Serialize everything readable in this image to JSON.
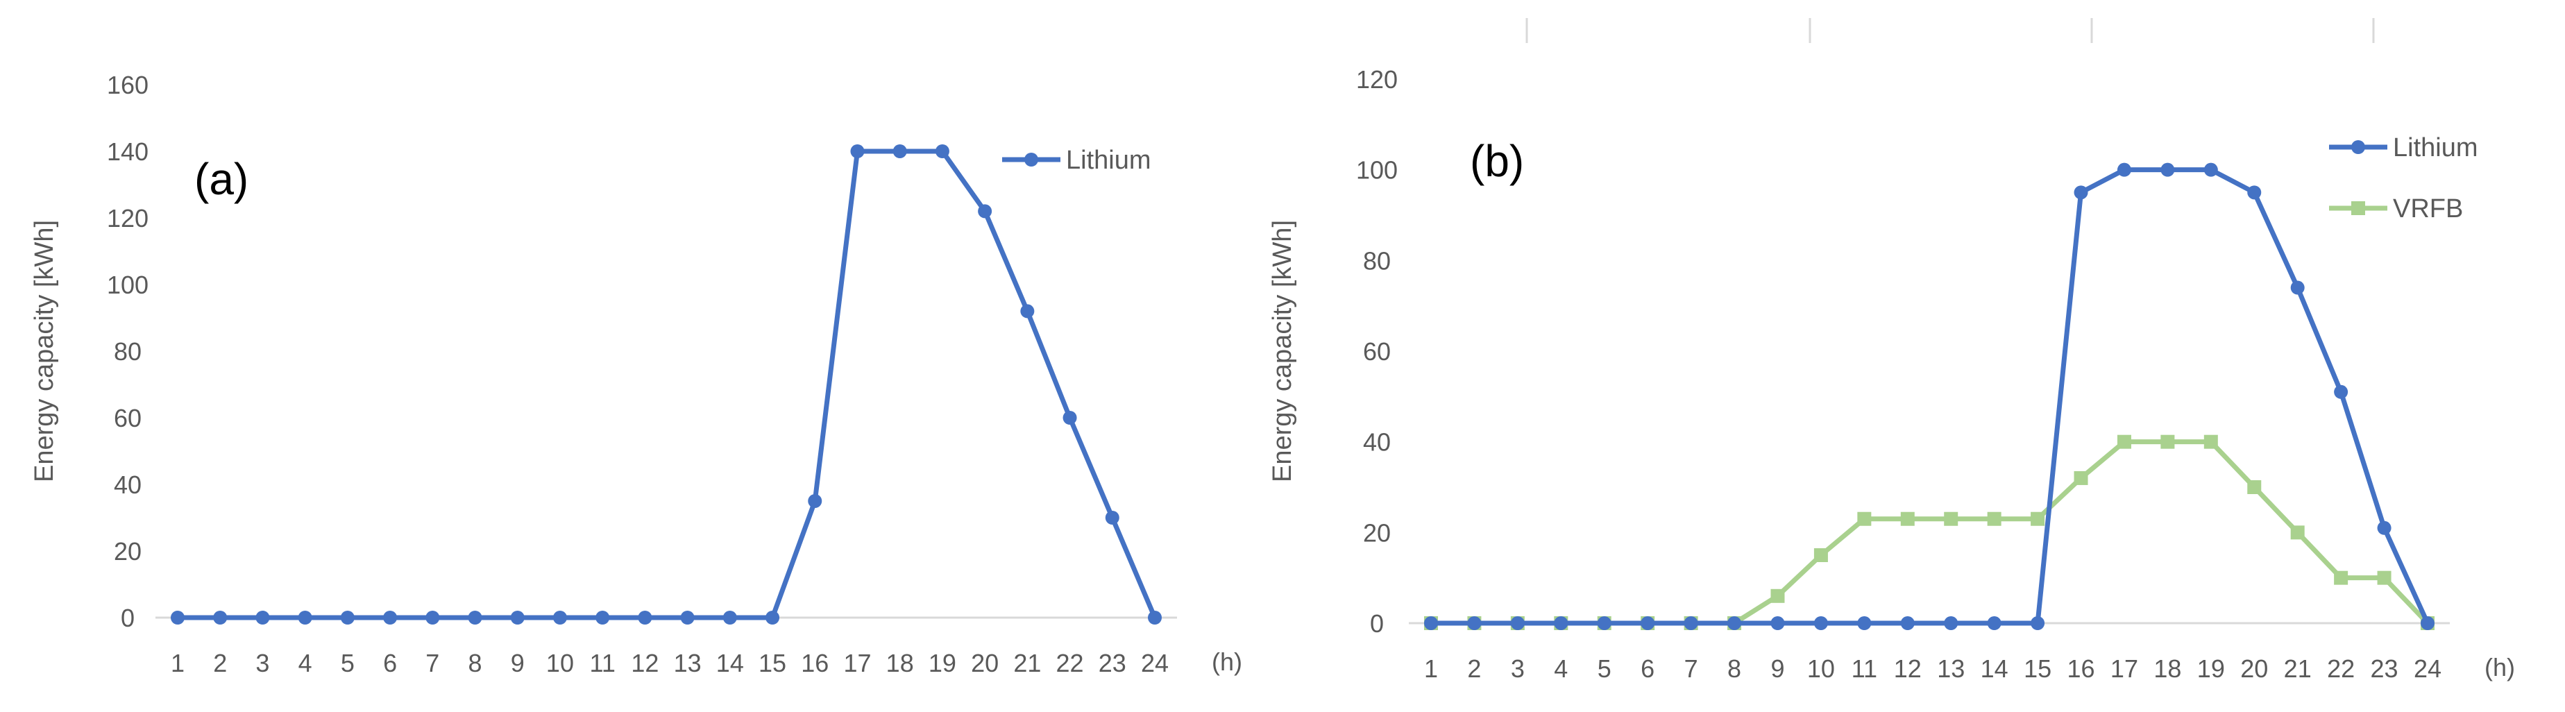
{
  "chart_data": [
    {
      "type": "line",
      "panel_label": "(a)",
      "x": [
        1,
        2,
        3,
        4,
        5,
        6,
        7,
        8,
        9,
        10,
        11,
        12,
        13,
        14,
        15,
        16,
        17,
        18,
        19,
        20,
        21,
        22,
        23,
        24
      ],
      "x_unit": "(h)",
      "ylabel": "Energy capacity [kWh]",
      "ylim": [
        0,
        160
      ],
      "yticks": [
        0,
        20,
        40,
        60,
        80,
        100,
        120,
        140,
        160
      ],
      "legend_position": "top-right",
      "series": [
        {
          "name": "Lithium",
          "color": "#4472C4",
          "marker": "circle",
          "values": [
            0,
            0,
            0,
            0,
            0,
            0,
            0,
            0,
            0,
            0,
            0,
            0,
            0,
            0,
            0,
            35,
            140,
            140,
            140,
            122,
            92,
            60,
            30,
            0
          ]
        }
      ]
    },
    {
      "type": "line",
      "panel_label": "(b)",
      "x": [
        1,
        2,
        3,
        4,
        5,
        6,
        7,
        8,
        9,
        10,
        11,
        12,
        13,
        14,
        15,
        16,
        17,
        18,
        19,
        20,
        21,
        22,
        23,
        24
      ],
      "x_unit": "(h)",
      "ylabel": "Energy capacity [kWh]",
      "ylim": [
        0,
        120
      ],
      "yticks": [
        0,
        20,
        40,
        60,
        80,
        100,
        120
      ],
      "legend_position": "top-right",
      "series": [
        {
          "name": "Lithium",
          "color": "#4472C4",
          "marker": "circle",
          "values": [
            0,
            0,
            0,
            0,
            0,
            0,
            0,
            0,
            0,
            0,
            0,
            0,
            0,
            0,
            0,
            95,
            100,
            100,
            100,
            95,
            74,
            51,
            21,
            0
          ]
        },
        {
          "name": "VRFB",
          "color": "#A9D18E",
          "marker": "square",
          "values": [
            0,
            0,
            0,
            0,
            0,
            0,
            0,
            0,
            6,
            15,
            23,
            23,
            23,
            23,
            23,
            32,
            40,
            40,
            40,
            30,
            20,
            10,
            10,
            0
          ]
        }
      ]
    }
  ]
}
